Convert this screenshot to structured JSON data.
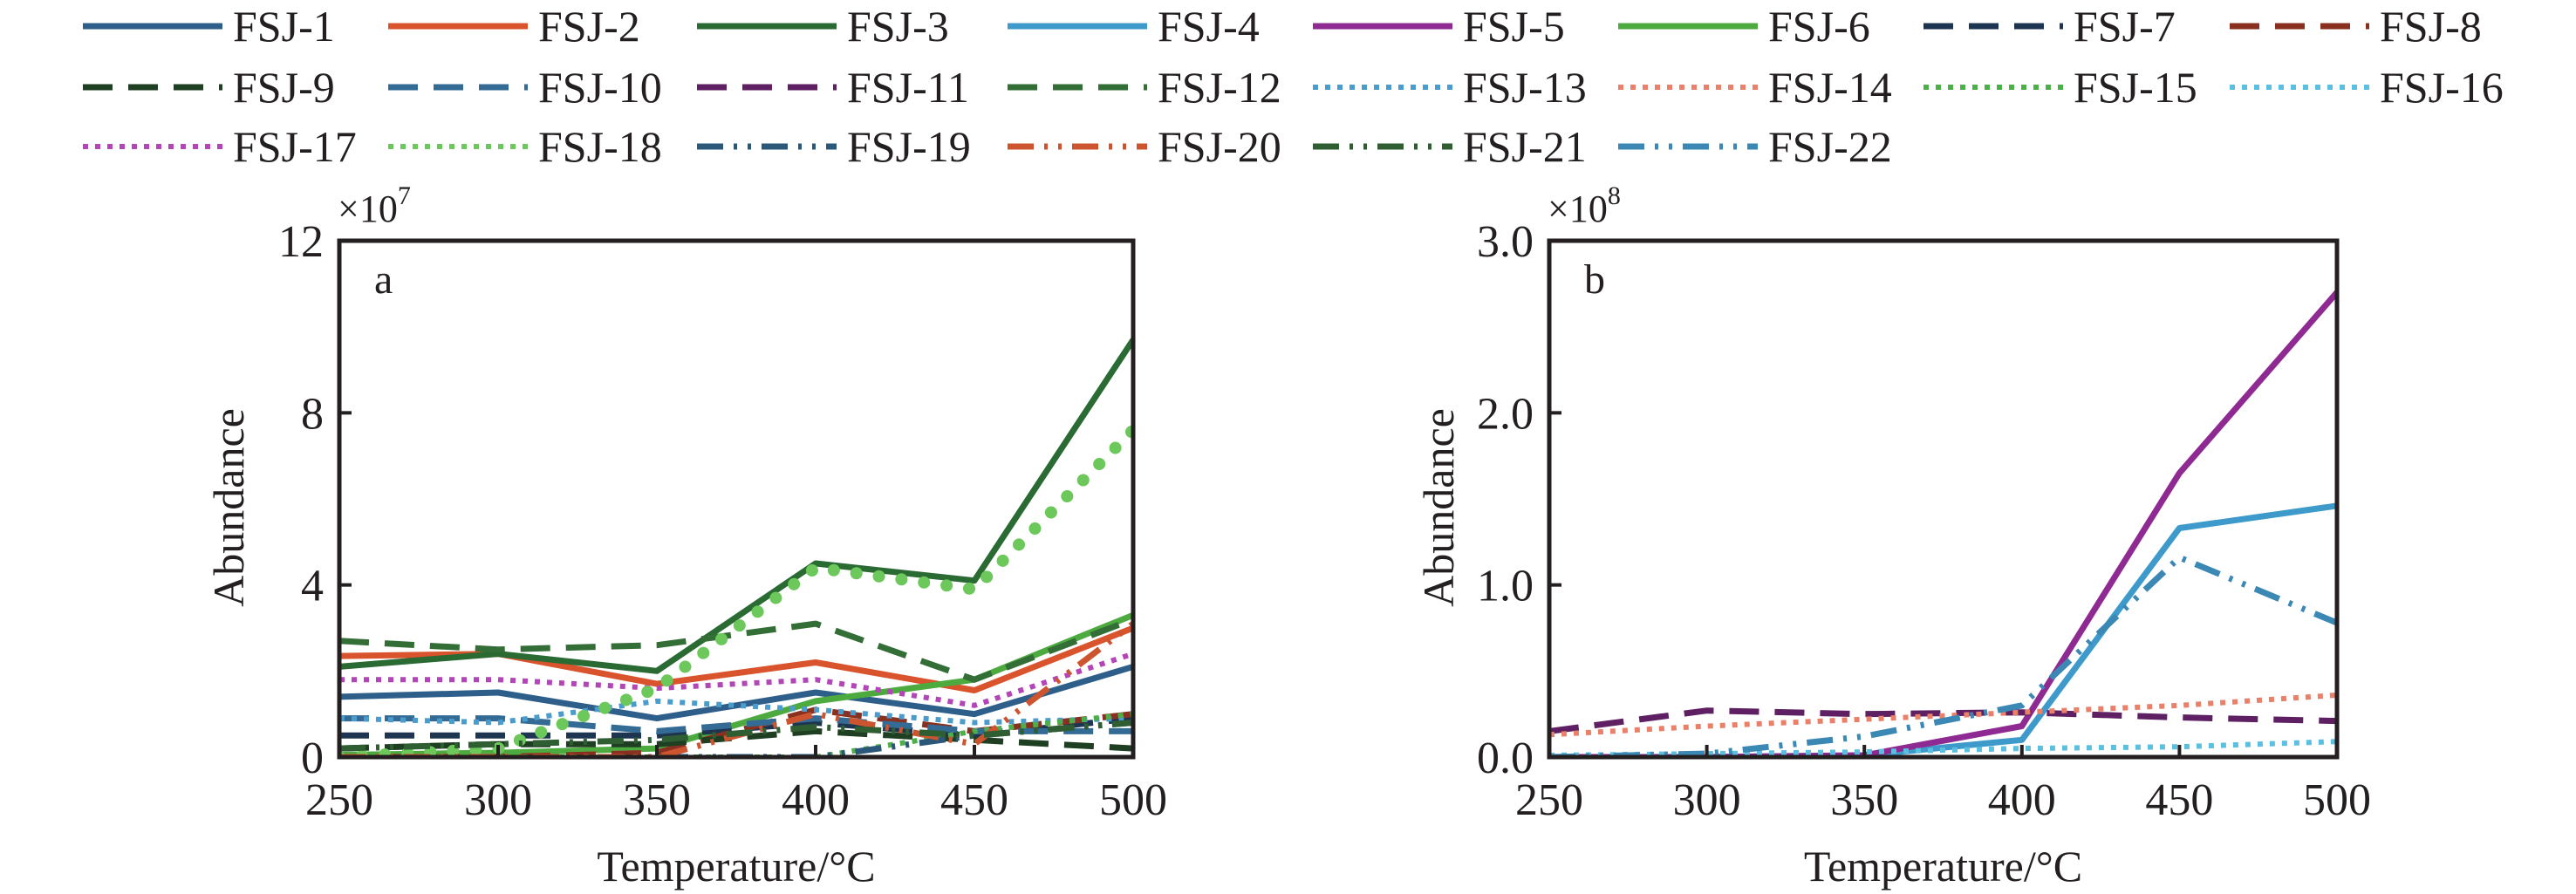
{
  "legend": {
    "items": [
      {
        "name": "FSJ-1",
        "color": "#2e5f8a",
        "dash": "solid"
      },
      {
        "name": "FSJ-2",
        "color": "#d9532c",
        "dash": "solid"
      },
      {
        "name": "FSJ-3",
        "color": "#2a6a33",
        "dash": "solid"
      },
      {
        "name": "FSJ-4",
        "color": "#3d9acb",
        "dash": "solid"
      },
      {
        "name": "FSJ-5",
        "color": "#8e2a92",
        "dash": "solid"
      },
      {
        "name": "FSJ-6",
        "color": "#4daa3f",
        "dash": "solid"
      },
      {
        "name": "FSJ-7",
        "color": "#1d3550",
        "dash": "dashed"
      },
      {
        "name": "FSJ-8",
        "color": "#8a3020",
        "dash": "dashed"
      },
      {
        "name": "FSJ-9",
        "color": "#1e3f22",
        "dash": "dashed"
      },
      {
        "name": "FSJ-10",
        "color": "#336b95",
        "dash": "dashed"
      },
      {
        "name": "FSJ-11",
        "color": "#5e1f63",
        "dash": "dashed"
      },
      {
        "name": "FSJ-12",
        "color": "#336e36",
        "dash": "dashed"
      },
      {
        "name": "FSJ-13",
        "color": "#4a9ccc",
        "dash": "dotted"
      },
      {
        "name": "FSJ-14",
        "color": "#e8806a",
        "dash": "dotted"
      },
      {
        "name": "FSJ-15",
        "color": "#4caf4a",
        "dash": "dotted"
      },
      {
        "name": "FSJ-16",
        "color": "#5bbfe0",
        "dash": "dotted"
      },
      {
        "name": "FSJ-17",
        "color": "#b445b8",
        "dash": "dotted"
      },
      {
        "name": "FSJ-18",
        "color": "#6cc85a",
        "dash": "dotted"
      },
      {
        "name": "FSJ-19",
        "color": "#2b5878",
        "dash": "dashdot"
      },
      {
        "name": "FSJ-20",
        "color": "#cc5530",
        "dash": "dashdot"
      },
      {
        "name": "FSJ-21",
        "color": "#2e5e32",
        "dash": "dashdot"
      },
      {
        "name": "FSJ-22",
        "color": "#3b88b5",
        "dash": "dashdot"
      }
    ]
  },
  "chart_data": [
    {
      "type": "line",
      "panel_label": "a",
      "title": "",
      "xlabel": "Temperature/°C",
      "ylabel": "Abundance",
      "y_multiplier_label": "×10",
      "y_multiplier_exp": "7",
      "x": [
        250,
        300,
        350,
        400,
        450,
        500
      ],
      "xlim": [
        250,
        500
      ],
      "ylim": [
        0,
        12
      ],
      "xticks": [
        "250",
        "300",
        "350",
        "400",
        "450",
        "500"
      ],
      "yticks": [
        {
          "value": 0,
          "label": "0"
        },
        {
          "value": 4,
          "label": "4"
        },
        {
          "value": 8,
          "label": "8"
        },
        {
          "value": 12,
          "label": "12"
        }
      ],
      "grid": false,
      "legend_placement": "top",
      "series": [
        {
          "name": "FSJ-1",
          "values": [
            1.4,
            1.5,
            0.9,
            1.5,
            1.0,
            2.1
          ]
        },
        {
          "name": "FSJ-2",
          "values": [
            2.35,
            2.4,
            1.7,
            2.2,
            1.55,
            3.0
          ]
        },
        {
          "name": "FSJ-3",
          "values": [
            2.1,
            2.4,
            2.0,
            4.5,
            4.1,
            9.7
          ]
        },
        {
          "name": "FSJ-6",
          "values": [
            0.05,
            0.1,
            0.2,
            1.3,
            1.8,
            3.3
          ]
        },
        {
          "name": "FSJ-7",
          "values": [
            0.5,
            0.5,
            0.5,
            0.8,
            0.5,
            0.9
          ]
        },
        {
          "name": "FSJ-8",
          "values": [
            0.0,
            0.0,
            0.1,
            1.1,
            0.6,
            1.0
          ]
        },
        {
          "name": "FSJ-9",
          "values": [
            0.2,
            0.3,
            0.3,
            0.6,
            0.4,
            0.2
          ]
        },
        {
          "name": "FSJ-10",
          "values": [
            0.9,
            0.9,
            0.6,
            0.9,
            0.6,
            0.6
          ]
        },
        {
          "name": "FSJ-12",
          "values": [
            2.7,
            2.5,
            2.6,
            3.1,
            1.8,
            3.2
          ]
        },
        {
          "name": "FSJ-13",
          "values": [
            0.9,
            0.8,
            1.3,
            1.1,
            0.8,
            0.9
          ]
        },
        {
          "name": "FSJ-15",
          "values": [
            0.0,
            0.0,
            0.0,
            0.0,
            0.6,
            1.0
          ]
        },
        {
          "name": "FSJ-17",
          "values": [
            1.8,
            1.8,
            1.6,
            1.8,
            1.2,
            2.4
          ]
        },
        {
          "name": "FSJ-18",
          "values": [
            0.0,
            0.2,
            1.6,
            4.4,
            3.9,
            7.6
          ]
        },
        {
          "name": "FSJ-19",
          "values": [
            0.0,
            0.0,
            0.0,
            0.0,
            0.5,
            0.8
          ]
        },
        {
          "name": "FSJ-20",
          "values": [
            0.0,
            0.0,
            0.0,
            1.0,
            0.3,
            3.1
          ]
        },
        {
          "name": "FSJ-21",
          "values": [
            0.2,
            0.3,
            0.4,
            0.7,
            0.5,
            0.8
          ]
        }
      ]
    },
    {
      "type": "line",
      "panel_label": "b",
      "title": "",
      "xlabel": "Temperature/°C",
      "ylabel": "Abundance",
      "y_multiplier_label": "×10",
      "y_multiplier_exp": "8",
      "x": [
        250,
        300,
        350,
        400,
        450,
        500
      ],
      "xlim": [
        250,
        500
      ],
      "ylim": [
        0,
        3.0
      ],
      "xticks": [
        "250",
        "300",
        "350",
        "400",
        "450",
        "500"
      ],
      "yticks": [
        {
          "value": 0,
          "label": "0.0"
        },
        {
          "value": 1,
          "label": "1.0"
        },
        {
          "value": 2,
          "label": "2.0"
        },
        {
          "value": 3,
          "label": "3.0"
        }
      ],
      "grid": false,
      "legend_placement": "top",
      "series": [
        {
          "name": "FSJ-4",
          "values": [
            0.0,
            0.0,
            0.01,
            0.1,
            1.33,
            1.46
          ]
        },
        {
          "name": "FSJ-5",
          "values": [
            0.0,
            0.0,
            0.01,
            0.18,
            1.65,
            2.7
          ]
        },
        {
          "name": "FSJ-11",
          "values": [
            0.15,
            0.27,
            0.25,
            0.26,
            0.23,
            0.21
          ]
        },
        {
          "name": "FSJ-14",
          "values": [
            0.13,
            0.18,
            0.22,
            0.26,
            0.3,
            0.36
          ]
        },
        {
          "name": "FSJ-16",
          "values": [
            0.01,
            0.02,
            0.03,
            0.05,
            0.06,
            0.09
          ]
        },
        {
          "name": "FSJ-22",
          "values": [
            0.0,
            0.02,
            0.12,
            0.3,
            1.16,
            0.78
          ]
        }
      ]
    }
  ]
}
